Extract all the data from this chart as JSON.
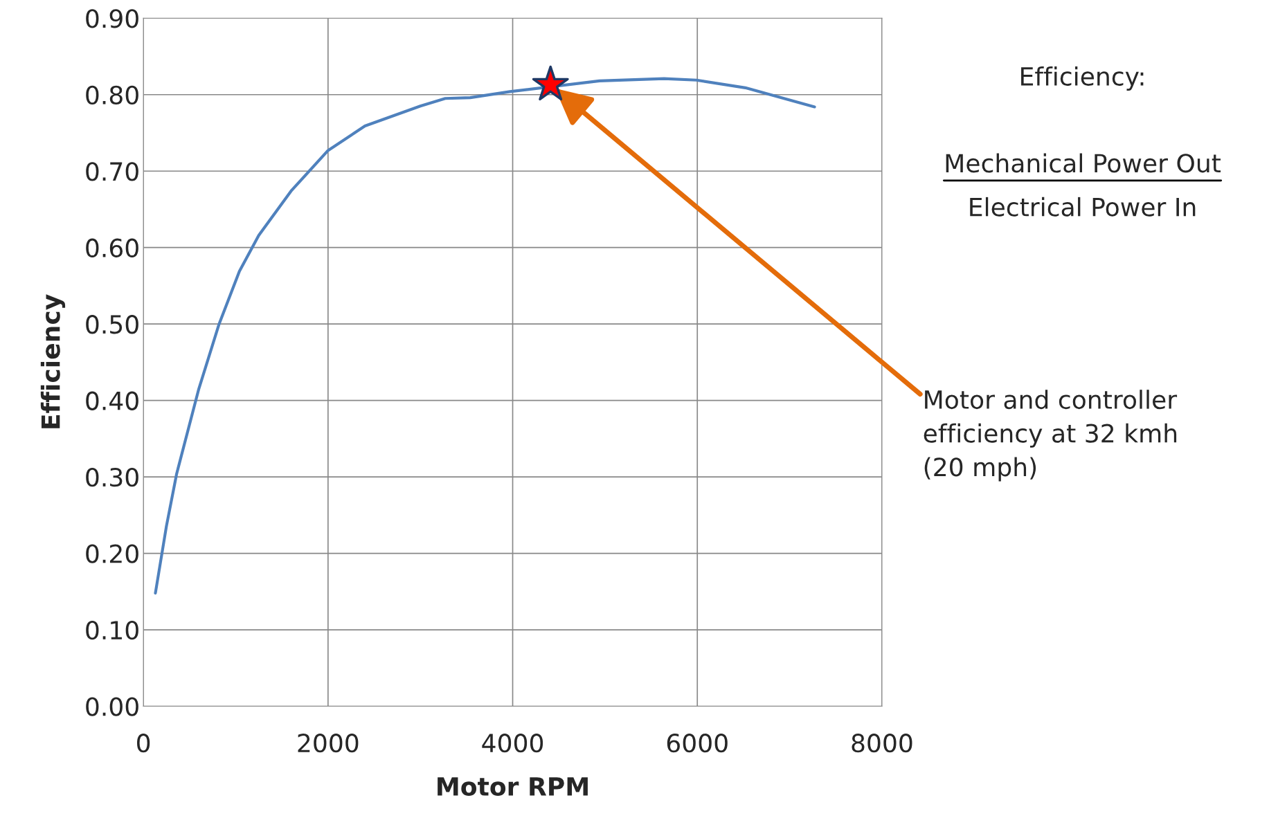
{
  "chart_data": {
    "type": "line",
    "xlabel": "Motor RPM",
    "ylabel": "Efficiency",
    "xlim": [
      0,
      8000
    ],
    "xticks": [
      0,
      2000,
      4000,
      6000,
      8000
    ],
    "ylim": [
      0,
      0.9
    ],
    "yticks": [
      {
        "value": 0,
        "label": "0.00"
      },
      {
        "value": 0.1,
        "label": "0.10"
      },
      {
        "value": 0.2,
        "label": "0.20"
      },
      {
        "value": 0.3,
        "label": "0.30"
      },
      {
        "value": 0.4,
        "label": "0.40"
      },
      {
        "value": 0.5,
        "label": "0.50"
      },
      {
        "value": 0.6,
        "label": "0.60"
      },
      {
        "value": 0.7,
        "label": "0.70"
      },
      {
        "value": 0.8,
        "label": "0.80"
      },
      {
        "value": 0.9,
        "label": "0.90"
      }
    ],
    "grid": true,
    "line_style": "solid",
    "series": [
      {
        "color": "#4f81bd",
        "marker": "none",
        "x": [
          130,
          250,
          360,
          600,
          820,
          1040,
          1250,
          1600,
          2000,
          2400,
          3000,
          3270,
          3540,
          3970,
          4940,
          5640,
          5990,
          6520,
          7270
        ],
        "values": [
          0.148,
          0.236,
          0.304,
          0.415,
          0.5,
          0.569,
          0.616,
          0.674,
          0.727,
          0.759,
          0.785,
          0.795,
          0.796,
          0.804,
          0.818,
          0.821,
          0.819,
          0.809,
          0.784
        ]
      },
      {
        "type": "scatter",
        "color": "#ff0000",
        "marker": "star",
        "x": [
          4410
        ],
        "values": [
          0.813
        ]
      }
    ],
    "annotations": [
      "Efficiency:",
      "Mechanical Power Out",
      "Electrical Power In",
      "Motor and controller\nefficiency at 32 kmh\n(20 mph)"
    ]
  }
}
